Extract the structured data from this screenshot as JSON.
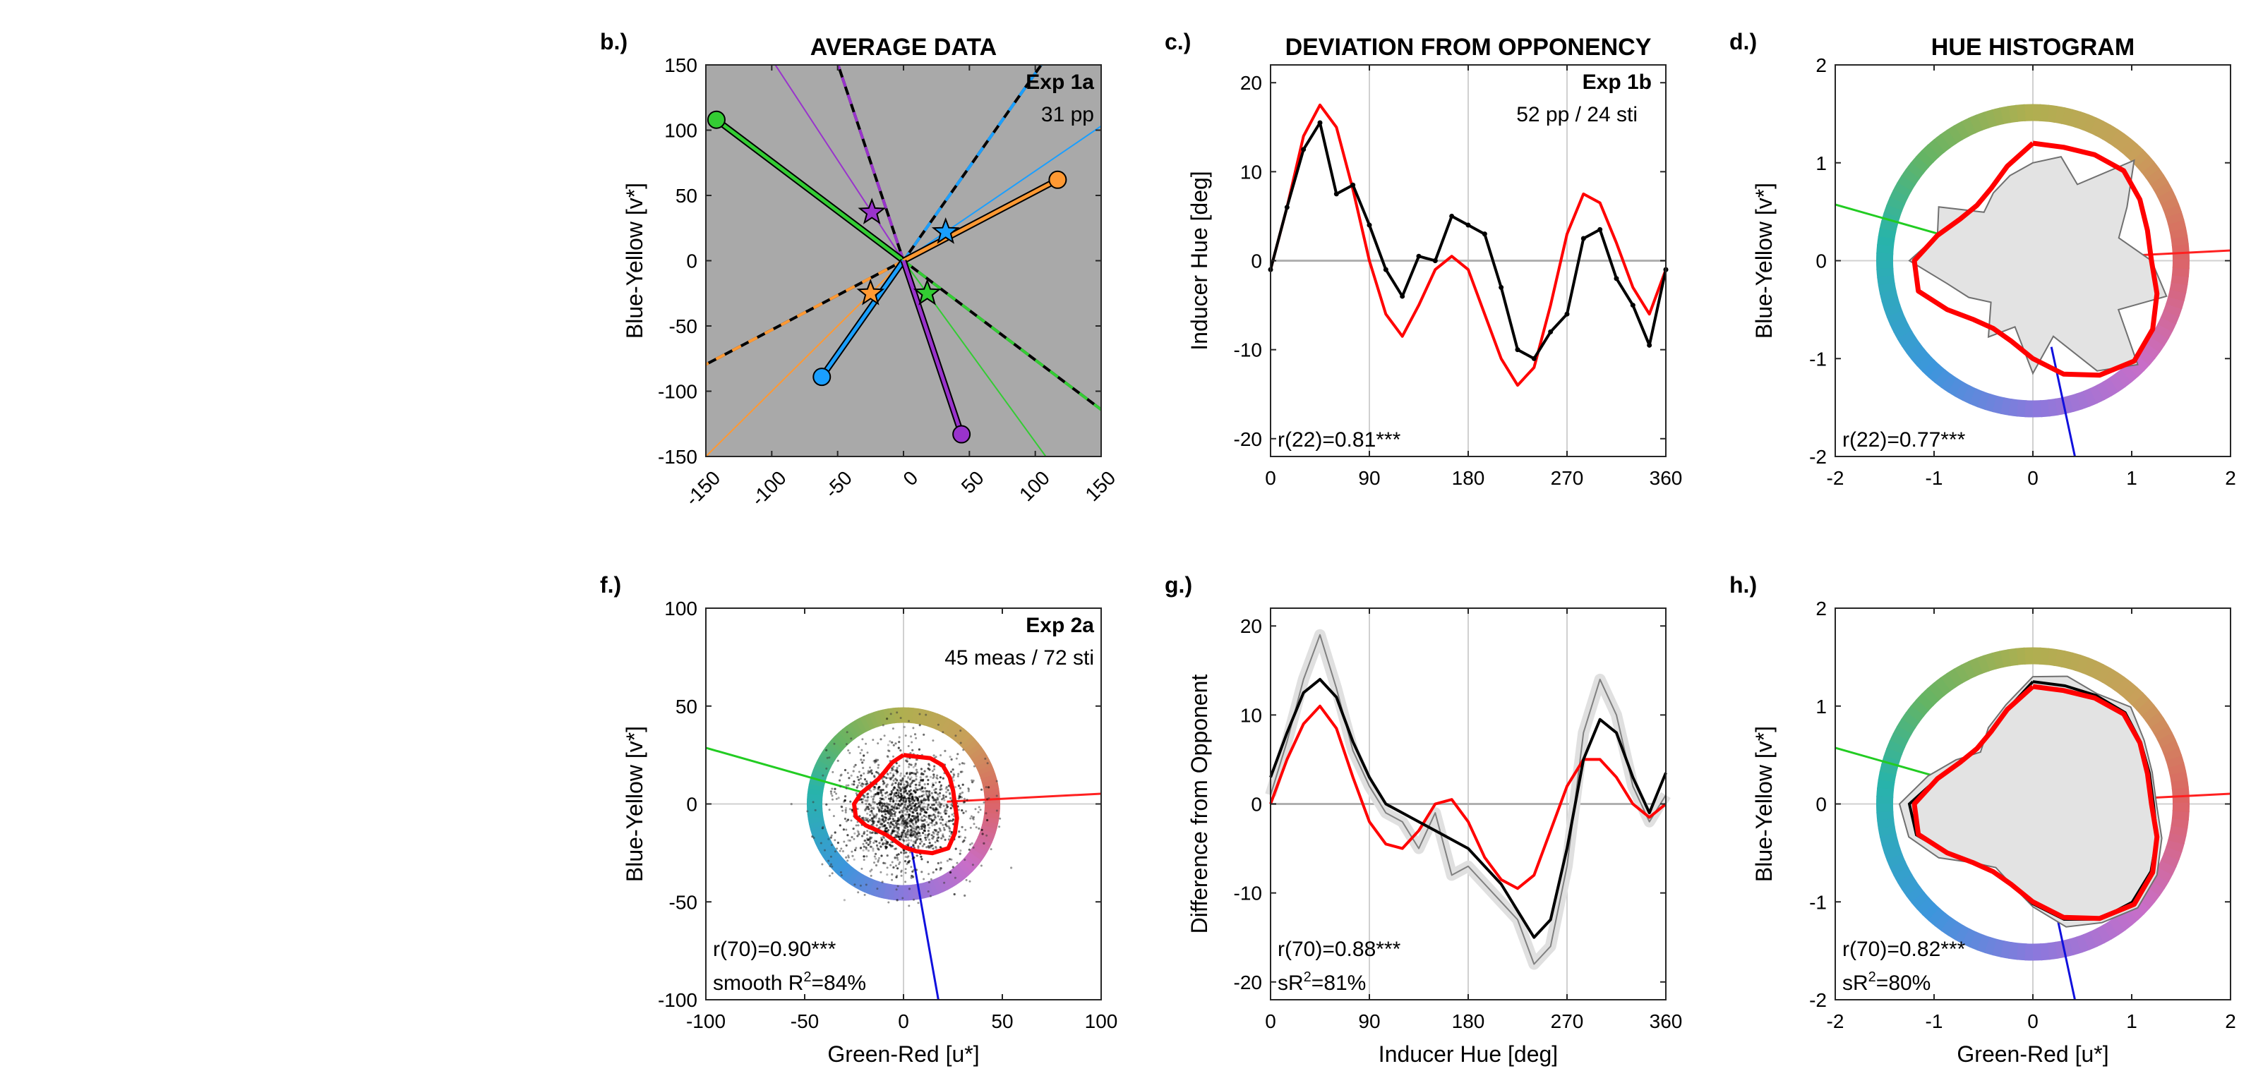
{
  "chart_data": [
    {
      "id": "b",
      "panel_label": "b.)",
      "title": "AVERAGE DATA",
      "type": "line",
      "xlim": [
        -150,
        150
      ],
      "ylim": [
        -150,
        150
      ],
      "xticks": [
        -150,
        -100,
        -50,
        0,
        50,
        100,
        150
      ],
      "yticks": [
        -150,
        -100,
        -50,
        0,
        50,
        100,
        150
      ],
      "xlabel": "",
      "ylabel": "Blue-Yellow [v*]",
      "background": "#a9a9a9",
      "annotations": [
        "Exp 1a",
        "31 pp"
      ],
      "inducers": [
        {
          "color": "#33cc33",
          "x": -142,
          "y": 108
        },
        {
          "color": "#ff9933",
          "x": 117,
          "y": 62
        },
        {
          "color": "#1a9fff",
          "x": -62,
          "y": -89
        },
        {
          "color": "#9933cc",
          "x": 44,
          "y": -133
        }
      ],
      "stars": [
        {
          "color": "#9933cc",
          "x": -24,
          "y": 37
        },
        {
          "color": "#1a9fff",
          "x": 32,
          "y": 22
        },
        {
          "color": "#ff9933",
          "x": -25,
          "y": -25
        },
        {
          "color": "#33cc33",
          "x": 18,
          "y": -25
        }
      ]
    },
    {
      "id": "c",
      "panel_label": "c.)",
      "title": "DEVIATION FROM OPPONENCY",
      "type": "line",
      "xlim": [
        0,
        360
      ],
      "ylim": [
        -22,
        22
      ],
      "xticks": [
        0,
        90,
        180,
        270,
        360
      ],
      "yticks": [
        -20,
        -10,
        0,
        10,
        20
      ],
      "xlabel": "",
      "ylabel": "Inducer Hue [deg]",
      "annotations": [
        "Exp 1b",
        "52 pp / 24 sti",
        "r(22)=0.81***"
      ],
      "series": [
        {
          "name": "",
          "color": "#000000",
          "x": [
            0,
            15,
            30,
            45,
            60,
            75,
            90,
            105,
            120,
            135,
            150,
            165,
            180,
            195,
            210,
            225,
            240,
            255,
            270,
            285,
            300,
            315,
            330,
            345,
            360
          ],
          "y": [
            -1,
            6,
            12.5,
            15.5,
            7.5,
            8.5,
            4,
            -1,
            -4,
            0.5,
            0,
            5,
            4,
            3,
            -3,
            -10,
            -11,
            -8,
            -6,
            2.5,
            3.5,
            -2,
            -5,
            -9.5,
            -1
          ]
        },
        {
          "name": "",
          "color": "#ff0000",
          "x": [
            0,
            15,
            30,
            45,
            60,
            75,
            90,
            105,
            120,
            135,
            150,
            165,
            180,
            195,
            210,
            225,
            240,
            255,
            270,
            285,
            300,
            315,
            330,
            345,
            360
          ],
          "y": [
            -1,
            6,
            14,
            17.5,
            15,
            8,
            0,
            -6,
            -8.5,
            -5,
            -1,
            0.5,
            -1,
            -6,
            -11,
            -14,
            -12,
            -5,
            3,
            7.5,
            6.5,
            2,
            -3,
            -6,
            -1
          ]
        }
      ]
    },
    {
      "id": "d",
      "panel_label": "d.)",
      "title": "HUE HISTOGRAM",
      "type": "line",
      "xlim": [
        -2,
        2
      ],
      "ylim": [
        -2,
        2
      ],
      "xticks": [
        -2,
        -1,
        0,
        1,
        2
      ],
      "yticks": [
        -2,
        -1,
        0,
        1,
        2
      ],
      "xlabel": "",
      "ylabel": "Blue-Yellow [v*]",
      "annotations": [
        "r(22)=0.77***"
      ],
      "red_radius": [
        1.2,
        1.0,
        0.85,
        0.8,
        0.85,
        1.0,
        1.2,
        1.2,
        1.0,
        0.85,
        0.8,
        0.85,
        1.0,
        1.2,
        1.35,
        1.45,
        1.4,
        1.3,
        1.2,
        1.2,
        1.25,
        1.3,
        1.25,
        1.2
      ],
      "gray_radius": [
        1.0,
        0.9,
        0.8,
        0.7,
        1.1,
        1.0,
        1.25,
        0.9,
        0.75,
        0.6,
        0.9,
        0.7,
        1.15,
        0.8,
        1.3,
        1.5,
        1.0,
        1.4,
        1.2,
        0.9,
        1.1,
        1.45,
        0.9,
        1.1
      ]
    },
    {
      "id": "f",
      "panel_label": "f.)",
      "type": "scatter",
      "xlim": [
        -100,
        100
      ],
      "ylim": [
        -100,
        100
      ],
      "xticks": [
        -100,
        -50,
        0,
        50,
        100
      ],
      "yticks": [
        -100,
        -50,
        0,
        50,
        100
      ],
      "xlabel": "Green-Red [u*]",
      "ylabel": "Blue-Yellow [v*]",
      "annotations": [
        "Exp 2a",
        "45 meas / 72 sti",
        "r(70)=0.90***",
        "smooth R",
        "2",
        "=84%"
      ],
      "red_radius": [
        25,
        22,
        19,
        18,
        19,
        22,
        25,
        25,
        22,
        19,
        18,
        19,
        22,
        25,
        29,
        32,
        30,
        28,
        26,
        26,
        27,
        28,
        27,
        25
      ]
    },
    {
      "id": "g",
      "panel_label": "g.)",
      "type": "line",
      "xlim": [
        0,
        360
      ],
      "ylim": [
        -22,
        22
      ],
      "xticks": [
        0,
        90,
        180,
        270,
        360
      ],
      "yticks": [
        -20,
        -10,
        0,
        10,
        20
      ],
      "xlabel": "Inducer Hue [deg]",
      "ylabel": "Difference from Opponent",
      "annotations": [
        "r(70)=0.88***",
        "sR",
        "2",
        "=81%"
      ],
      "series": [
        {
          "name": "",
          "color": "#000000",
          "x": [
            0,
            15,
            30,
            45,
            60,
            75,
            90,
            105,
            120,
            135,
            150,
            165,
            180,
            195,
            210,
            225,
            240,
            255,
            270,
            285,
            300,
            315,
            330,
            345,
            360
          ],
          "y": [
            3,
            8,
            12.5,
            14,
            12,
            7,
            3,
            0,
            -1,
            -2,
            -3,
            -4,
            -5,
            -7,
            -9,
            -12,
            -15,
            -13,
            -5,
            5,
            9.5,
            8,
            3,
            -1,
            3.5
          ]
        },
        {
          "name": "",
          "color": "#ff0000",
          "x": [
            0,
            15,
            30,
            45,
            60,
            75,
            90,
            105,
            120,
            135,
            150,
            165,
            180,
            195,
            210,
            225,
            240,
            255,
            270,
            285,
            300,
            315,
            330,
            345,
            360
          ],
          "y": [
            0,
            5,
            9,
            11,
            8.5,
            3,
            -2,
            -4.5,
            -5,
            -3,
            0,
            0.5,
            -2,
            -6,
            -8.5,
            -9.5,
            -8,
            -3,
            2,
            5,
            5,
            3,
            0,
            -1.5,
            0
          ]
        },
        {
          "name": "",
          "color": "#808080",
          "x": [
            0,
            15,
            30,
            45,
            60,
            75,
            90,
            105,
            120,
            135,
            150,
            165,
            180,
            195,
            210,
            225,
            240,
            255,
            270,
            285,
            300,
            315,
            330,
            345,
            360
          ],
          "y": [
            1,
            7,
            14,
            19,
            13,
            6,
            2,
            -1,
            -2,
            -5,
            -1,
            -8,
            -7,
            -9,
            -11,
            -13,
            -18,
            -16,
            -7,
            8,
            14,
            10,
            2,
            -2,
            1
          ]
        }
      ]
    },
    {
      "id": "h",
      "panel_label": "h.)",
      "type": "line",
      "xlim": [
        -2,
        2
      ],
      "ylim": [
        -2,
        2
      ],
      "xticks": [
        -2,
        -1,
        0,
        1,
        2
      ],
      "yticks": [
        -2,
        -1,
        0,
        1,
        2
      ],
      "xlabel": "Green-Red [u*]",
      "ylabel": "Blue-Yellow [v*]",
      "annotations": [
        "r(70)=0.82***",
        "sR",
        "2",
        "=80%"
      ],
      "red_radius": [
        1.2,
        1.0,
        0.85,
        0.8,
        0.85,
        1.0,
        1.2,
        1.2,
        1.0,
        0.85,
        0.8,
        0.85,
        1.0,
        1.2,
        1.35,
        1.45,
        1.4,
        1.3,
        1.2,
        1.2,
        1.25,
        1.3,
        1.25,
        1.2
      ],
      "gray_radius": [
        1.3,
        1.05,
        0.9,
        0.75,
        0.9,
        1.1,
        1.35,
        1.3,
        1.1,
        0.85,
        0.75,
        0.85,
        1.05,
        1.3,
        1.4,
        1.5,
        1.45,
        1.35,
        1.25,
        1.25,
        1.3,
        1.4,
        1.3,
        1.35
      ],
      "black_radius": [
        1.25,
        1.0,
        0.85,
        0.8,
        0.85,
        1.0,
        1.25,
        1.22,
        1.0,
        0.85,
        0.8,
        0.85,
        1.02,
        1.22,
        1.36,
        1.42,
        1.38,
        1.3,
        1.22,
        1.22,
        1.26,
        1.32,
        1.28,
        1.25
      ]
    }
  ]
}
